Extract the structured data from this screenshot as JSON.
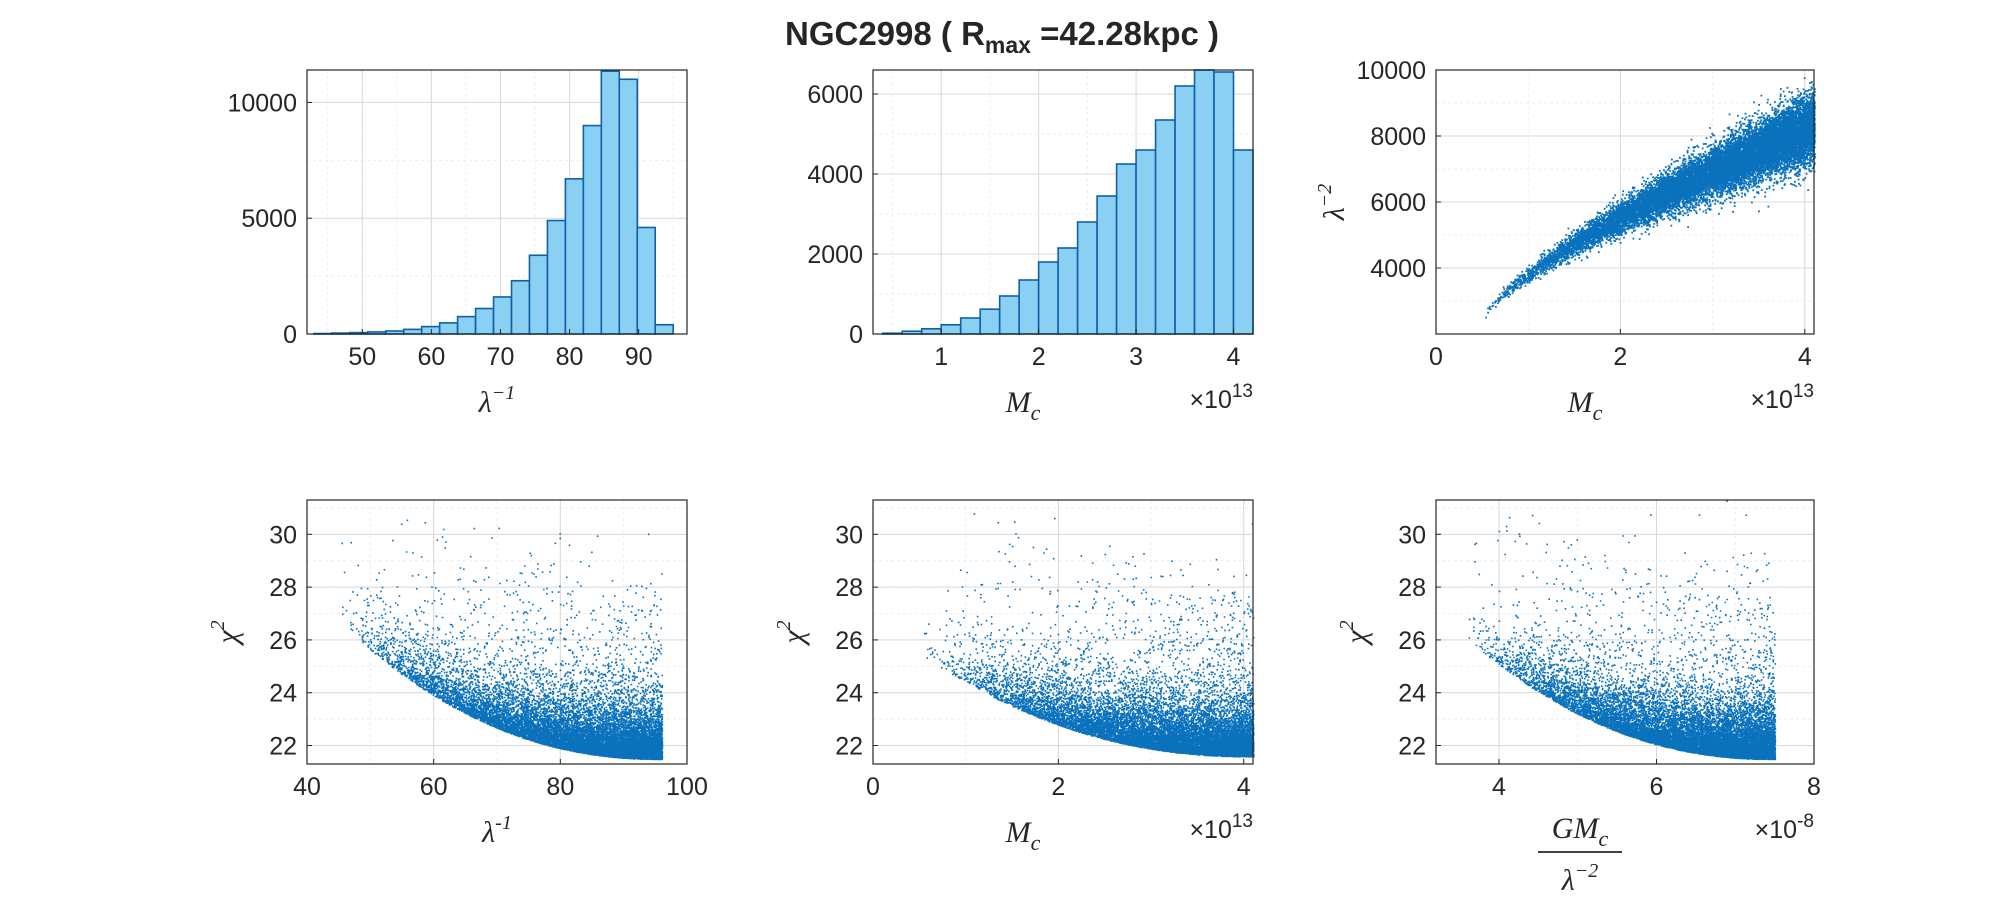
{
  "title": {
    "prefix": "NGC2998  ( ",
    "R": "R",
    "sub": "max",
    "suffix": " =42.28kpc  )"
  },
  "colors": {
    "bar_fill": "#8ad0f2",
    "bar_edge": "#1060a8",
    "point": "#0a72bd",
    "axis": "#262626",
    "grid_major": "#d9d9d9",
    "grid_minor": "#eeeeee"
  },
  "chart_data": [
    {
      "id": "hist-lambda-inv",
      "type": "bar",
      "xlabel": {
        "base": "λ",
        "sup": "−1",
        "style": "italic"
      },
      "ylabel": null,
      "xlim": [
        42,
        97
      ],
      "ylim": [
        0,
        11400
      ],
      "xticks": [
        50,
        60,
        70,
        80,
        90
      ],
      "yticks": [
        0,
        5000,
        10000
      ],
      "bin_edges": [
        43,
        45.6,
        48.2,
        50.8,
        53.4,
        56,
        58.6,
        61.2,
        63.8,
        66.4,
        69,
        71.6,
        74.2,
        76.8,
        79.4,
        82,
        84.6,
        87.2,
        89.8,
        92.4,
        95
      ],
      "values": [
        20,
        40,
        60,
        90,
        130,
        200,
        320,
        480,
        750,
        1100,
        1600,
        2300,
        3400,
        4900,
        6700,
        9000,
        11350,
        11000,
        4600,
        400
      ],
      "grid": true
    },
    {
      "id": "hist-mc",
      "type": "bar",
      "xlabel": {
        "base": "M",
        "sub": "c",
        "style": "italic"
      },
      "multiplier": "×10",
      "multiplier_exp": "13",
      "xlim": [
        0.3,
        4.2
      ],
      "ylim": [
        0,
        6600
      ],
      "xticks": [
        1,
        2,
        3,
        4
      ],
      "yticks": [
        0,
        2000,
        4000,
        6000
      ],
      "bin_edges": [
        0.4,
        0.6,
        0.8,
        1.0,
        1.2,
        1.4,
        1.6,
        1.8,
        2.0,
        2.2,
        2.4,
        2.6,
        2.8,
        3.0,
        3.2,
        3.4,
        3.6,
        3.8,
        4.0,
        4.2
      ],
      "values": [
        20,
        70,
        130,
        230,
        400,
        620,
        950,
        1350,
        1800,
        2150,
        2800,
        3450,
        4250,
        4600,
        5350,
        6200,
        6600,
        6550,
        4600
      ],
      "grid": true
    },
    {
      "id": "scatter-mc-lambda2",
      "type": "scatter",
      "xlabel": {
        "base": "M",
        "sub": "c",
        "style": "italic"
      },
      "ylabel": {
        "base": "λ",
        "sup": "−2",
        "style": "italic"
      },
      "multiplier": "×10",
      "multiplier_exp": "13",
      "xlim": [
        0,
        4.1
      ],
      "ylim": [
        2000,
        10000
      ],
      "xticks": [
        0,
        2,
        4
      ],
      "yticks": [
        4000,
        6000,
        8000,
        10000
      ],
      "relation": {
        "x_range": [
          0.5,
          4.1
        ],
        "y_at_x_min": 2400,
        "y_at_x_max": 8300,
        "spread_growth": 450
      },
      "grid": true
    },
    {
      "id": "scatter-lambda-inv-chi2",
      "type": "scatter",
      "xlabel": {
        "base": "λ",
        "sup": "-1",
        "style": "italic"
      },
      "ylabel": {
        "base": "χ",
        "sup": "2"
      },
      "xlim": [
        40,
        100
      ],
      "ylim": [
        21.3,
        31.3
      ],
      "xticks": [
        40,
        60,
        80,
        100
      ],
      "yticks": [
        22,
        24,
        26,
        28,
        30
      ],
      "relation": {
        "x_range": [
          44,
          96
        ],
        "floor_at_x_min": 26.9,
        "floor_at_x_max": 21.5
      },
      "grid": true
    },
    {
      "id": "scatter-mc-chi2",
      "type": "scatter",
      "xlabel": {
        "base": "M",
        "sub": "c",
        "style": "italic"
      },
      "ylabel": {
        "base": "χ",
        "sup": "2"
      },
      "multiplier": "×10",
      "multiplier_exp": "13",
      "xlim": [
        0,
        4.1
      ],
      "ylim": [
        21.3,
        31.3
      ],
      "xticks": [
        0,
        2,
        4
      ],
      "yticks": [
        22,
        24,
        26,
        28,
        30
      ],
      "relation": {
        "x_range": [
          0.5,
          4.1
        ],
        "floor_at_x_min": 25.5,
        "floor_at_x_max": 21.6
      },
      "grid": true
    },
    {
      "id": "scatter-gmc-chi2",
      "type": "scatter",
      "xlabel": {
        "num": "GM",
        "num_sub": "c",
        "den": "λ",
        "den_sup": "−2",
        "style": "italic"
      },
      "ylabel": {
        "base": "χ",
        "sup": "2"
      },
      "multiplier": "×10",
      "multiplier_exp": "-8",
      "xlim": [
        3.2,
        8
      ],
      "ylim": [
        21.3,
        31.3
      ],
      "xticks": [
        4,
        6,
        8
      ],
      "yticks": [
        22,
        24,
        26,
        28,
        30
      ],
      "relation": {
        "x_range": [
          3.5,
          7.5
        ],
        "floor_at_x_min": 26.3,
        "floor_at_x_max": 21.5
      },
      "grid": true
    }
  ]
}
